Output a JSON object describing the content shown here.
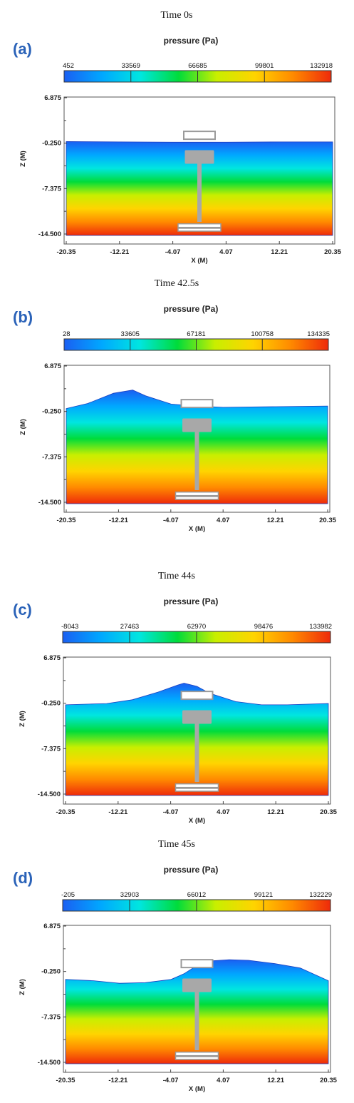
{
  "colors": {
    "scale": [
      "#1a5ff2",
      "#00a8ff",
      "#00e6e0",
      "#00dc3a",
      "#c8ef00",
      "#ffd400",
      "#ff8a00",
      "#ee2a0a"
    ],
    "structure": "#a8a8a8",
    "structure_outline": "#9a9a9a",
    "panel_label": "#2a62b8"
  },
  "chart_data": [
    {
      "type": "heatmap",
      "panel_label": "(a)",
      "time_label": "Time 0s",
      "title": "pressure (Pa)",
      "colorbar_ticks": [
        "452",
        "33569",
        "66685",
        "99801",
        "132918"
      ],
      "xlabel": "X (M)",
      "ylabel": "Z (M)",
      "xticks": [
        "-20.35",
        "-12.21",
        "-4.07",
        "4.07",
        "12.21",
        "20.35"
      ],
      "yticks": [
        "6.875",
        "-0.250",
        "-7.375",
        "-14.500"
      ],
      "xlim": [
        -20.35,
        20.35
      ],
      "ylim": [
        -14.5,
        6.875
      ],
      "surface_x": [
        -20.35,
        -12.21,
        -4.07,
        0,
        4.07,
        12.21,
        20.35
      ],
      "surface_z": [
        0.0,
        -0.05,
        -0.1,
        -0.1,
        -0.1,
        -0.05,
        -0.05
      ]
    },
    {
      "type": "heatmap",
      "panel_label": "(b)",
      "time_label": "Time 42.5s",
      "title": "pressure (Pa)",
      "colorbar_ticks": [
        "28",
        "33605",
        "67181",
        "100758",
        "134335"
      ],
      "xlabel": "X (M)",
      "ylabel": "Z (M)",
      "xticks": [
        "-20.35",
        "-12.21",
        "-4.07",
        "4.07",
        "12.21",
        "20.35"
      ],
      "yticks": [
        "6.875",
        "-0.250",
        "-7.375",
        "-14.500"
      ],
      "xlim": [
        -20.35,
        20.35
      ],
      "ylim": [
        -14.5,
        6.875
      ],
      "surface_x": [
        -20.35,
        -17.0,
        -13.0,
        -10.0,
        -8.0,
        -4.0,
        0,
        4.07,
        12.21,
        20.35
      ],
      "surface_z": [
        0.2,
        1.0,
        2.6,
        3.1,
        2.2,
        0.9,
        0.6,
        0.4,
        0.5,
        0.6
      ]
    },
    {
      "type": "heatmap",
      "panel_label": "(c)",
      "time_label": "Time 44s",
      "title": "pressure (Pa)",
      "colorbar_ticks": [
        "-8043",
        "27463",
        "62970",
        "98476",
        "133982"
      ],
      "xlabel": "X (M)",
      "ylabel": "Z (M)",
      "xticks": [
        "-20.35",
        "-12.21",
        "-4.07",
        "4.07",
        "12.21",
        "20.35"
      ],
      "yticks": [
        "6.875",
        "-0.250",
        "-7.375",
        "-14.500"
      ],
      "xlim": [
        -20.35,
        20.35
      ],
      "ylim": [
        -14.5,
        6.875
      ],
      "surface_x": [
        -20.35,
        -14.0,
        -10.0,
        -6.0,
        -3.0,
        -2.0,
        0,
        2.0,
        6.0,
        10.0,
        14.0,
        20.35
      ],
      "surface_z": [
        -0.5,
        -0.3,
        0.3,
        1.5,
        2.6,
        2.9,
        2.4,
        1.3,
        0.0,
        -0.5,
        -0.5,
        -0.3
      ]
    },
    {
      "type": "heatmap",
      "panel_label": "(d)",
      "time_label": "Time 45s",
      "title": "pressure (Pa)",
      "colorbar_ticks": [
        "-205",
        "32903",
        "66012",
        "99121",
        "132229"
      ],
      "xlabel": "X (M)",
      "ylabel": "Z (M)",
      "xticks": [
        "-20.35",
        "-12.21",
        "-4.07",
        "4.07",
        "12.21",
        "20.35"
      ],
      "yticks": [
        "6.875",
        "-0.250",
        "-7.375",
        "-14.500"
      ],
      "xlim": [
        -20.35,
        20.35
      ],
      "ylim": [
        -14.5,
        6.875
      ],
      "surface_x": [
        -20.35,
        -16.0,
        -12.0,
        -8.0,
        -4.0,
        -2.0,
        0,
        2.0,
        5.0,
        8.0,
        12.0,
        16.0,
        20.35
      ],
      "surface_z": [
        -1.5,
        -1.7,
        -2.1,
        -2.0,
        -1.5,
        -0.6,
        0.7,
        1.4,
        1.6,
        1.5,
        1.0,
        0.3,
        -1.7
      ]
    }
  ]
}
